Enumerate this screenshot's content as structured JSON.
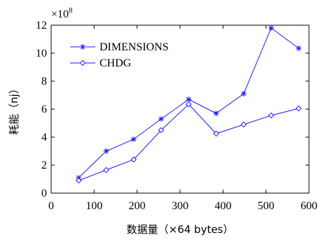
{
  "chart_data": {
    "type": "line",
    "title": "",
    "xlabel": "数据量（×64 bytes）",
    "ylabel": "耗能（nj）",
    "y_multiplier": "×10",
    "y_exponent": "8",
    "xlim": [
      0,
      600
    ],
    "ylim": [
      0,
      12
    ],
    "x_ticks": [
      0,
      100,
      200,
      300,
      400,
      500,
      600
    ],
    "y_ticks": [
      0,
      2,
      4,
      6,
      8,
      10,
      12
    ],
    "x_tick_labels": [
      "0",
      "100",
      "200",
      "300",
      "400",
      "500",
      "600"
    ],
    "y_tick_labels": [
      "0",
      "2",
      "4",
      "6",
      "8",
      "10",
      "12"
    ],
    "grid": false,
    "legend_position": "top-left",
    "line_color": "#1a1aff",
    "series": [
      {
        "name": "DIMENSIONS",
        "marker": "star",
        "x": [
          64,
          128,
          192,
          256,
          320,
          384,
          448,
          512,
          576
        ],
        "y": [
          1.1,
          3.0,
          3.85,
          5.3,
          6.7,
          5.7,
          7.1,
          11.8,
          10.35
        ]
      },
      {
        "name": "CHDG",
        "marker": "diamond",
        "x": [
          64,
          128,
          192,
          256,
          320,
          384,
          448,
          512,
          576
        ],
        "y": [
          0.9,
          1.65,
          2.4,
          4.5,
          6.35,
          4.25,
          4.9,
          5.55,
          6.05
        ]
      }
    ]
  }
}
